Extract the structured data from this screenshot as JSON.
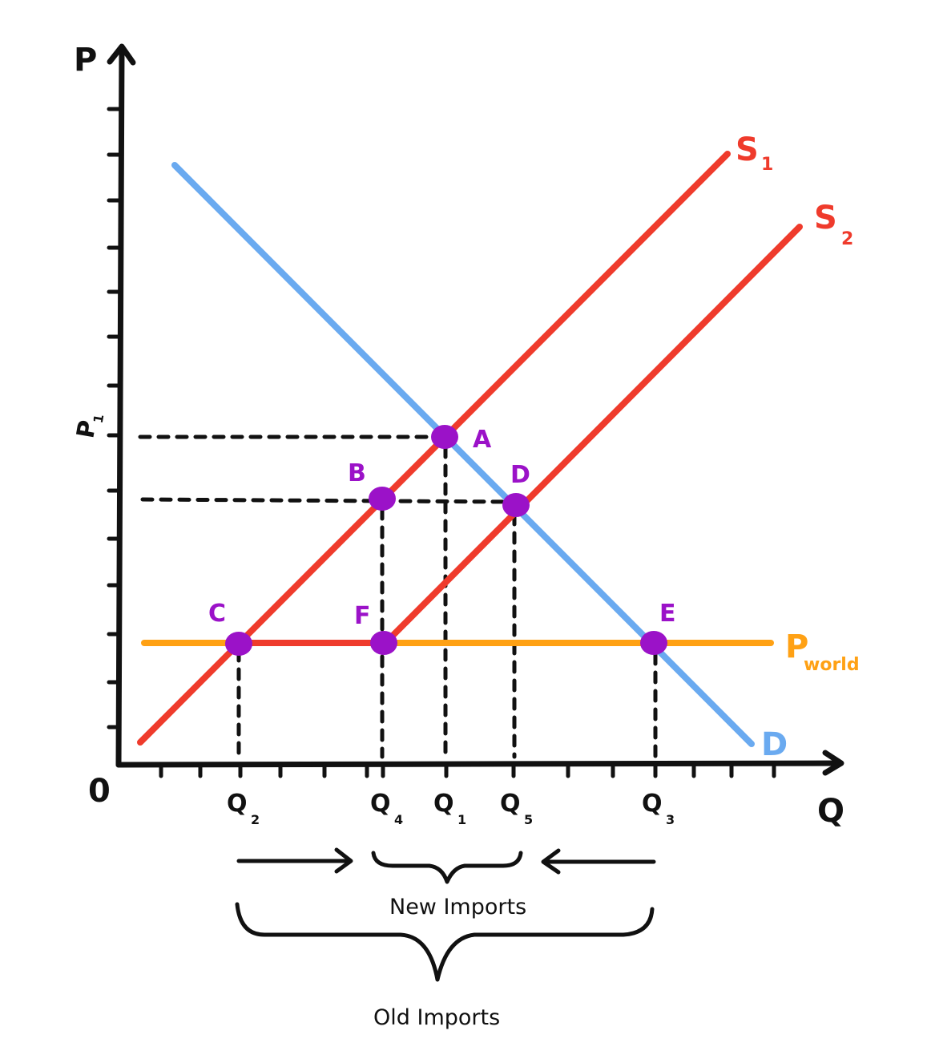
{
  "axes": {
    "y_label": "P",
    "x_label": "Q",
    "origin_label": "0",
    "p1_label": "P",
    "p1_sub": "1"
  },
  "curves": {
    "s1": {
      "label": "S",
      "sub": "1",
      "color": "#ef3b2c"
    },
    "s2": {
      "label": "S",
      "sub": "2",
      "color": "#ef3b2c"
    },
    "demand": {
      "label": "D",
      "color": "#6aaaf0"
    },
    "pworld": {
      "label": "P",
      "sub": "world",
      "color": "#ffa114"
    }
  },
  "points": {
    "color": "#9b12c8",
    "a": "A",
    "b": "B",
    "c": "C",
    "d": "D",
    "e": "E",
    "f": "F"
  },
  "quantities": {
    "q2": {
      "label": "Q",
      "sub": "2"
    },
    "q4": {
      "label": "Q",
      "sub": "4"
    },
    "q1": {
      "label": "Q",
      "sub": "1"
    },
    "q5": {
      "label": "Q",
      "sub": "5"
    },
    "q3": {
      "label": "Q",
      "sub": "3"
    }
  },
  "captions": {
    "new_imports": "New Imports",
    "old_imports": "Old Imports"
  }
}
